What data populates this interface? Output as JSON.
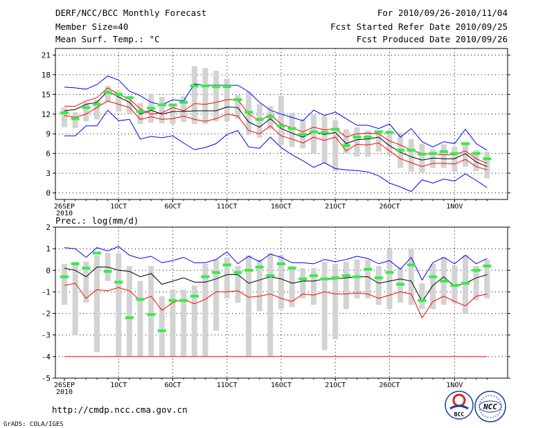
{
  "header": {
    "title_left": "DERF/NCC/BCC Monthly Forecast",
    "member_size": "Member Size=40",
    "variable": "Mean Surf. Temp.: °C",
    "range": "For 2010/09/26-2010/11/04",
    "started": "Fcst Started Refer Date 2010/09/25",
    "produced": "Fcst Produced Date 2010/09/26"
  },
  "footer": {
    "url": "http://cmdp.ncc.cma.gov.cn",
    "credit": "GrADS: COLA/IGES",
    "logo_bcc": "BCC",
    "logo_ncc": "NCC"
  },
  "colors": {
    "max": "#0000ff",
    "upper": "#ff0000",
    "mean": "#000000",
    "box": "#d3d3d3",
    "median": "#33ee44",
    "grid": "#000000"
  },
  "chart_data": [
    {
      "type": "box-ensemble",
      "title": "Mean Surf. Temp.: °C",
      "xticks": [
        "26SEP",
        "1OCT",
        "6OCT",
        "11OCT",
        "16OCT",
        "21OCT",
        "26OCT",
        "1NOV"
      ],
      "xtick_day_index": [
        0,
        5,
        10,
        15,
        20,
        25,
        30,
        36
      ],
      "year_label": "2010",
      "ylim": [
        -1,
        22
      ],
      "yticks": [
        0,
        3,
        6,
        9,
        12,
        15,
        18,
        21
      ],
      "series_max": [
        16.1,
        16.0,
        15.8,
        16.5,
        17.8,
        17.2,
        15.5,
        14.8,
        13.8,
        13.4,
        14.2,
        14.0,
        16.6,
        16.4,
        16.4,
        16.4,
        16.4,
        15.4,
        13.8,
        12.6,
        12.0,
        11.5,
        11.0,
        12.6,
        11.8,
        12.3,
        11.3,
        10.3,
        10.3,
        9.8,
        10.5,
        8.5,
        9.8,
        7.8,
        7.0,
        7.8,
        7.5,
        9.7,
        7.5,
        6.5
      ],
      "series_upper": [
        13.2,
        13.2,
        14.0,
        14.5,
        16.0,
        15.0,
        14.3,
        12.8,
        12.0,
        12.2,
        13.0,
        12.5,
        13.6,
        13.5,
        13.8,
        14.2,
        14.2,
        12.0,
        11.0,
        11.9,
        10.5,
        9.9,
        9.3,
        10.0,
        9.6,
        9.8,
        8.5,
        9.0,
        9.1,
        9.0,
        7.9,
        7.3,
        6.5,
        6.0,
        5.9,
        5.8,
        5.8,
        6.4,
        5.2,
        4.5
      ],
      "series_mean": [
        12.5,
        12.7,
        13.5,
        13.8,
        15.5,
        14.6,
        13.8,
        12.0,
        12.6,
        12.0,
        12.4,
        12.4,
        12.5,
        12.5,
        12.5,
        13.1,
        13.0,
        10.8,
        10.0,
        11.3,
        9.8,
        9.1,
        8.5,
        9.3,
        8.9,
        9.2,
        7.5,
        8.1,
        8.2,
        8.5,
        7.2,
        6.2,
        5.5,
        5.0,
        5.3,
        5.2,
        5.2,
        6.0,
        4.7,
        4.0
      ],
      "series_lower": [
        11.8,
        11.5,
        12.0,
        13.0,
        14.0,
        13.5,
        13.0,
        11.2,
        11.6,
        11.2,
        11.3,
        11.7,
        11.2,
        10.9,
        11.3,
        12.0,
        11.7,
        9.5,
        9.0,
        10.2,
        8.7,
        8.2,
        7.6,
        8.5,
        8.0,
        8.5,
        6.4,
        7.4,
        7.3,
        7.6,
        6.4,
        5.2,
        4.6,
        4.0,
        4.5,
        4.5,
        4.4,
        5.1,
        4.0,
        3.5
      ],
      "series_min": [
        8.7,
        8.7,
        10.2,
        10.2,
        12.6,
        11.0,
        11.2,
        8.2,
        8.6,
        8.4,
        8.7,
        7.6,
        6.6,
        6.9,
        7.5,
        8.9,
        9.5,
        7.0,
        6.8,
        8.5,
        6.9,
        5.8,
        4.9,
        3.9,
        4.6,
        3.7,
        3.5,
        3.4,
        3.2,
        2.6,
        1.5,
        0.9,
        0.2,
        2.0,
        1.5,
        2.1,
        1.8,
        2.9,
        1.9,
        0.8
      ],
      "box_high": [
        13.0,
        12.3,
        13.8,
        14.2,
        16.3,
        15.5,
        14.8,
        13.7,
        15.1,
        14.6,
        13.3,
        14.7,
        19.3,
        19.0,
        18.6,
        17.4,
        14.9,
        15.4,
        13.5,
        13.2,
        14.8,
        12.2,
        11.2,
        11.9,
        11.7,
        11.1,
        9.7,
        10.0,
        9.5,
        9.5,
        9.6,
        9.2,
        8.2,
        7.5,
        6.6,
        7.4,
        7.0,
        7.5,
        6.5,
        6.3
      ],
      "box_low": [
        10.0,
        9.9,
        10.9,
        11.2,
        13.8,
        12.4,
        12.0,
        10.5,
        10.7,
        10.6,
        10.5,
        10.8,
        10.5,
        10.5,
        10.9,
        10.9,
        11.3,
        8.8,
        8.4,
        9.7,
        7.3,
        7.0,
        6.8,
        6.0,
        4.5,
        3.3,
        6.0,
        5.5,
        5.5,
        6.3,
        5.7,
        3.8,
        3.2,
        3.1,
        3.8,
        3.8,
        3.2,
        4.0,
        3.3,
        2.2
      ],
      "median": [
        12.2,
        11.3,
        13.0,
        13.5,
        15.3,
        15.0,
        14.5,
        12.4,
        12.9,
        13.4,
        13.4,
        13.8,
        16.3,
        16.3,
        16.2,
        16.2,
        14.2,
        12.3,
        11.2,
        11.6,
        10.2,
        9.8,
        8.9,
        9.3,
        9.2,
        9.7,
        7.2,
        8.5,
        8.5,
        9.3,
        9.2,
        6.5,
        6.5,
        5.9,
        6.0,
        6.3,
        6.0,
        7.5,
        6.0,
        5.2
      ],
      "notes": "blue=max, red=upper, black=mean, red=lower, blue=min; grey=box; green=median"
    },
    {
      "type": "box-ensemble",
      "title": "Prec.: log(mm/d)",
      "xticks": [
        "26SEP",
        "1OCT",
        "6OCT",
        "11OCT",
        "16OCT",
        "21OCT",
        "26OCT",
        "1NOV"
      ],
      "xtick_day_index": [
        0,
        5,
        10,
        15,
        20,
        25,
        30,
        36
      ],
      "year_label": "2010",
      "ylim": [
        -5,
        2
      ],
      "yticks": [
        -5,
        -4,
        -3,
        -2,
        -1,
        0,
        1,
        2
      ],
      "series_max": [
        1.05,
        1.0,
        0.6,
        1.05,
        0.9,
        1.1,
        0.7,
        0.55,
        0.65,
        0.35,
        0.45,
        0.6,
        0.35,
        0.35,
        0.5,
        0.85,
        0.3,
        0.65,
        0.4,
        0.75,
        0.6,
        0.35,
        0.35,
        0.3,
        0.5,
        0.4,
        0.5,
        0.65,
        0.55,
        0.3,
        0.45,
        0.05,
        0.6,
        -0.45,
        0.35,
        0.6,
        0.3,
        0.7,
        0.3,
        0.55
      ],
      "series_mean": [
        0.1,
        0.0,
        -0.3,
        0.15,
        0.15,
        0.0,
        -0.05,
        -0.3,
        -0.15,
        -0.65,
        -0.5,
        -0.35,
        -0.55,
        -0.55,
        -0.4,
        -0.2,
        -0.2,
        -0.6,
        -0.45,
        -0.3,
        -0.4,
        -0.6,
        -0.5,
        -0.5,
        -0.4,
        -0.4,
        -0.35,
        -0.3,
        -0.3,
        -0.6,
        -0.5,
        -0.4,
        -0.5,
        -1.45,
        -0.7,
        -0.3,
        -0.75,
        -0.6,
        -0.35,
        -0.2
      ],
      "series_lower": [
        -0.7,
        -0.6,
        -1.3,
        -0.9,
        -0.95,
        -0.8,
        -0.95,
        -1.4,
        -1.2,
        -1.85,
        -1.5,
        -1.35,
        -1.55,
        -1.35,
        -1.0,
        -1.0,
        -0.95,
        -1.25,
        -1.2,
        -1.1,
        -1.3,
        -1.45,
        -1.1,
        -1.15,
        -1.0,
        -1.1,
        -1.1,
        -1.05,
        -1.1,
        -1.3,
        -1.15,
        -1.0,
        -1.1,
        -2.2,
        -1.45,
        -1.2,
        -1.45,
        -1.65,
        -1.2,
        -1.1
      ],
      "series_min": [
        -4,
        -4,
        -4,
        -4,
        -4,
        -4,
        -4,
        -4,
        -4,
        -4,
        -4,
        -4,
        -4,
        -4,
        -4,
        -4,
        -4,
        -4,
        -4,
        -4,
        -4,
        -4,
        -4,
        -4,
        -4,
        -4,
        -4,
        -4,
        -4,
        -4,
        -4,
        -4,
        -4,
        -4,
        -4,
        -4,
        -4,
        -4,
        -4,
        -4
      ],
      "box_high": [
        0.3,
        0.4,
        0.4,
        0.7,
        0.8,
        0.8,
        0.2,
        -0.5,
        0.2,
        -1.2,
        -0.9,
        -0.9,
        -0.7,
        0.3,
        0.5,
        0.6,
        0.2,
        0.7,
        0.5,
        0.8,
        0.7,
        0.2,
        0.1,
        0.1,
        0.4,
        0.3,
        0.4,
        0.5,
        0.5,
        0.2,
        1.0,
        0.1,
        1.0,
        -0.6,
        0.3,
        0.6,
        0.2,
        0.7,
        0.2,
        0.5
      ],
      "box_low": [
        -1.6,
        -3.0,
        -1.5,
        -3.8,
        -0.5,
        -4.0,
        -4.0,
        -4.0,
        -4.0,
        -4.0,
        -4.0,
        -4.0,
        -4.0,
        -4.0,
        -2.8,
        -1.3,
        -1.5,
        -4.0,
        -1.9,
        -4.0,
        -1.8,
        -1.7,
        -1.3,
        -1.6,
        -3.7,
        -3.2,
        -1.8,
        -1.3,
        -1.3,
        -1.6,
        -1.8,
        -1.5,
        -1.6,
        -1.8,
        -1.8,
        -1.6,
        -1.5,
        -2.0,
        -1.4,
        -1.3
      ],
      "median": [
        -0.3,
        0.3,
        0.1,
        0.8,
        -0.05,
        -0.55,
        -2.2,
        -1.35,
        -2.05,
        -2.8,
        -1.4,
        -1.4,
        -1.2,
        -0.3,
        -0.1,
        0.25,
        -0.1,
        0.0,
        0.15,
        -0.25,
        0.3,
        0.1,
        -0.4,
        -0.25,
        -0.4,
        -0.35,
        -0.25,
        -0.3,
        0.05,
        -0.35,
        -0.1,
        -0.65,
        0.25,
        -1.4,
        -0.3,
        -0.5,
        -0.7,
        -0.6,
        0.0,
        0.2
      ],
      "notes": "blue=max, black=mean, red=lower, red baseline=min(-4)"
    }
  ]
}
